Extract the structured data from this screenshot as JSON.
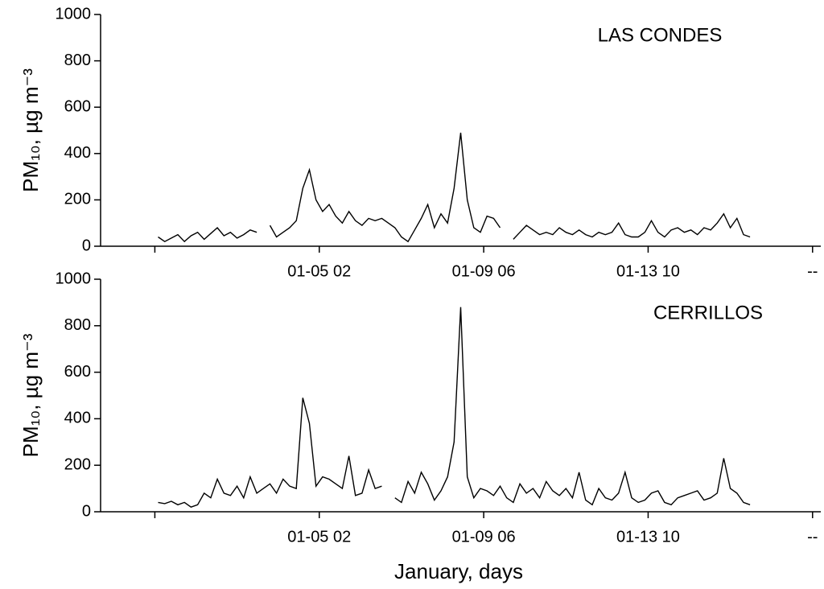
{
  "chart_data": [
    {
      "type": "line",
      "annotation": "LAS CONDES",
      "y_label": "PM₁₀, µg m⁻³",
      "color": "#000000",
      "xlim": [
        -33,
        405
      ],
      "ylim": [
        0,
        1000
      ],
      "yticks": [
        0,
        200,
        400,
        600,
        800,
        1000
      ],
      "xticks": [
        {
          "value": 0,
          "label": null
        },
        {
          "value": 100,
          "label": "01-05 02"
        },
        {
          "value": 200,
          "label": "01-09 06"
        },
        {
          "value": 300,
          "label": "01-13 10"
        },
        {
          "value": 400,
          "label": "--"
        }
      ],
      "x": [
        2,
        6,
        10,
        14,
        18,
        22,
        26,
        30,
        34,
        38,
        42,
        46,
        50,
        54,
        58,
        62,
        66,
        70,
        74,
        78,
        82,
        86,
        90,
        94,
        98,
        102,
        106,
        110,
        114,
        118,
        122,
        126,
        130,
        134,
        138,
        142,
        146,
        150,
        154,
        158,
        162,
        166,
        170,
        174,
        178,
        182,
        186,
        190,
        194,
        198,
        202,
        206,
        210,
        214,
        218,
        222,
        226,
        230,
        234,
        238,
        242,
        246,
        250,
        254,
        258,
        262,
        266,
        270,
        274,
        278,
        282,
        286,
        290,
        294,
        298,
        302,
        306,
        310,
        314,
        318,
        322,
        326,
        330,
        334,
        338,
        342,
        346,
        350,
        354,
        358,
        362
      ],
      "values": [
        40,
        20,
        35,
        50,
        20,
        45,
        60,
        30,
        55,
        80,
        45,
        60,
        35,
        50,
        70,
        60,
        null,
        90,
        40,
        60,
        80,
        110,
        250,
        330,
        200,
        150,
        180,
        130,
        100,
        150,
        110,
        90,
        120,
        110,
        120,
        100,
        80,
        40,
        20,
        70,
        120,
        180,
        80,
        140,
        100,
        250,
        490,
        200,
        80,
        60,
        130,
        120,
        80,
        null,
        30,
        60,
        90,
        70,
        50,
        60,
        50,
        80,
        60,
        50,
        70,
        50,
        40,
        60,
        50,
        60,
        100,
        50,
        40,
        40,
        60,
        110,
        60,
        40,
        70,
        80,
        60,
        70,
        50,
        80,
        70,
        100,
        140,
        80,
        120,
        50,
        40
      ]
    },
    {
      "type": "line",
      "annotation": "CERRILLOS",
      "y_label": "PM₁₀, µg m⁻³",
      "x_label": "January, days",
      "color": "#000000",
      "xlim": [
        -33,
        405
      ],
      "ylim": [
        0,
        1000
      ],
      "yticks": [
        0,
        200,
        400,
        600,
        800,
        1000
      ],
      "xticks": [
        {
          "value": 0,
          "label": null
        },
        {
          "value": 100,
          "label": "01-05 02"
        },
        {
          "value": 200,
          "label": "01-09 06"
        },
        {
          "value": 300,
          "label": "01-13 10"
        },
        {
          "value": 400,
          "label": "--"
        }
      ],
      "x": [
        2,
        6,
        10,
        14,
        18,
        22,
        26,
        30,
        34,
        38,
        42,
        46,
        50,
        54,
        58,
        62,
        66,
        70,
        74,
        78,
        82,
        86,
        90,
        94,
        98,
        102,
        106,
        110,
        114,
        118,
        122,
        126,
        130,
        134,
        138,
        142,
        146,
        150,
        154,
        158,
        162,
        166,
        170,
        174,
        178,
        182,
        186,
        190,
        194,
        198,
        202,
        206,
        210,
        214,
        218,
        222,
        226,
        230,
        234,
        238,
        242,
        246,
        250,
        254,
        258,
        262,
        266,
        270,
        274,
        278,
        282,
        286,
        290,
        294,
        298,
        302,
        306,
        310,
        314,
        318,
        322,
        326,
        330,
        334,
        338,
        342,
        346,
        350,
        354,
        358,
        362
      ],
      "values": [
        40,
        35,
        45,
        30,
        40,
        20,
        30,
        80,
        60,
        140,
        80,
        70,
        110,
        60,
        150,
        80,
        100,
        120,
        80,
        140,
        110,
        100,
        490,
        380,
        110,
        150,
        140,
        120,
        100,
        240,
        70,
        80,
        180,
        100,
        110,
        null,
        60,
        40,
        130,
        80,
        170,
        120,
        50,
        90,
        150,
        300,
        880,
        150,
        60,
        100,
        90,
        70,
        110,
        60,
        40,
        120,
        80,
        100,
        60,
        130,
        90,
        70,
        100,
        60,
        170,
        50,
        30,
        100,
        60,
        50,
        80,
        170,
        60,
        40,
        50,
        80,
        90,
        40,
        30,
        60,
        70,
        80,
        90,
        50,
        60,
        80,
        230,
        100,
        80,
        40,
        30
      ]
    }
  ]
}
